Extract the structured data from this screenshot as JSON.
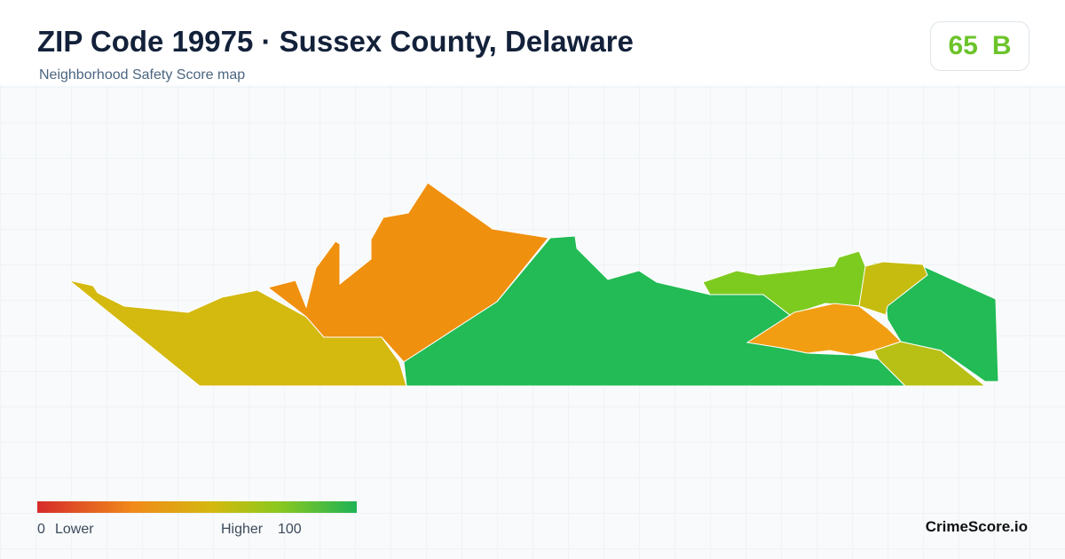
{
  "header": {
    "title": "ZIP Code 19975 · Sussex County, Delaware",
    "subtitle": "Neighborhood Safety Score map"
  },
  "score": {
    "value": 65,
    "grade": "B"
  },
  "legend": {
    "min": 0,
    "low_label": "Lower",
    "high_label": "Higher",
    "max": 100
  },
  "brand": "CrimeScore.io"
}
